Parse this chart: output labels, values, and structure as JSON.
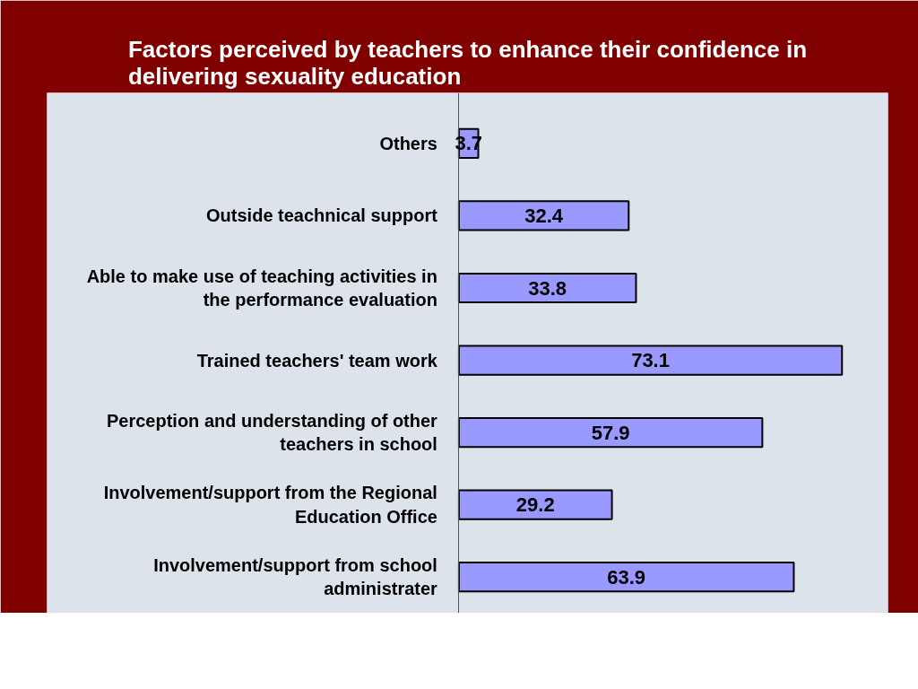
{
  "chart_data": {
    "type": "bar",
    "orientation": "horizontal",
    "title": "Factors perceived by teachers to enhance their confidence in delivering sexuality education",
    "categories": [
      "Others",
      "Outside teachnical support",
      "Able to make use of teaching activities in the performance evaluation",
      "Trained teachers' team work",
      "Perception and understanding of other teachers in school",
      "Involvement/support from the Regional Education Office",
      "Involvement/support from school administrater"
    ],
    "values": [
      3.7,
      32.4,
      33.8,
      73.1,
      57.9,
      29.2,
      63.9
    ],
    "color": "#9999ff",
    "data_labels": true
  }
}
